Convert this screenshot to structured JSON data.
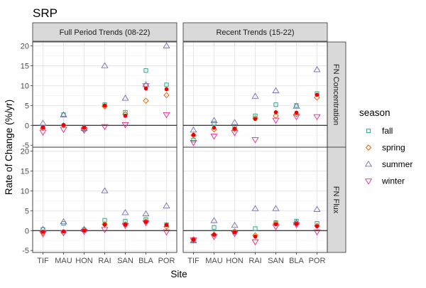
{
  "chart_data": {
    "type": "scatter",
    "title": "SRP",
    "xlabel": "Site",
    "ylabel": "Rate of Change (%/yr)",
    "sites": [
      "TIF",
      "MAU",
      "HON",
      "RAI",
      "SAN",
      "BLA",
      "POR"
    ],
    "yticks": [
      -5,
      0,
      5,
      10,
      15,
      20
    ],
    "ylim": [
      -5.5,
      21
    ],
    "grid": true,
    "legend": {
      "title": "season",
      "position": "right",
      "entries": [
        {
          "key": "fall",
          "label": "fall",
          "color": "#1b9e77",
          "shape": "square"
        },
        {
          "key": "spring",
          "label": "spring",
          "color": "#d95f02",
          "shape": "diamond"
        },
        {
          "key": "summer",
          "label": "summer",
          "color": "#7570b3",
          "shape": "triangle-up"
        },
        {
          "key": "winter",
          "label": "winter",
          "color": "#e7298a",
          "shape": "triangle-down"
        }
      ]
    },
    "overall_color": "#ee0000",
    "column_labels": [
      "Full Period Trends (08-22)",
      "Recent Trends (15-22)"
    ],
    "row_labels": [
      "FN Concentration",
      "FN Flux"
    ],
    "panels": [
      {
        "column": "Full Period Trends (08-22)",
        "row": "FN Concentration",
        "series": {
          "fall": [
            -0.5,
            2.7,
            -1.0,
            5.2,
            3.3,
            13.8,
            10.2
          ],
          "spring": [
            -0.7,
            0.0,
            -0.5,
            4.8,
            2.8,
            6.2,
            7.6
          ],
          "summer": [
            0.5,
            2.6,
            -0.8,
            15.0,
            6.8,
            10.2,
            20.0
          ],
          "winter": [
            -1.7,
            -1.0,
            -1.2,
            -0.3,
            0.2,
            10.0,
            2.7
          ],
          "overall": [
            -0.5,
            0.1,
            -0.6,
            5.0,
            2.4,
            9.3,
            9.1
          ]
        }
      },
      {
        "column": "Recent Trends (15-22)",
        "row": "FN Concentration",
        "series": {
          "fall": [
            -3.7,
            0.5,
            -0.3,
            2.4,
            5.2,
            5.0,
            8.0
          ],
          "spring": [
            -2.5,
            -1.0,
            -1.0,
            1.8,
            2.4,
            2.8,
            7.0
          ],
          "summer": [
            -1.2,
            1.2,
            0.7,
            7.3,
            8.7,
            4.8,
            14.0
          ],
          "winter": [
            -4.3,
            -2.7,
            -1.8,
            -3.6,
            1.3,
            2.2,
            2.2
          ],
          "overall": [
            -2.4,
            -0.6,
            -0.8,
            1.6,
            3.3,
            3.2,
            7.7
          ]
        }
      },
      {
        "column": "Full Period Trends (08-22)",
        "row": "FN Flux",
        "series": {
          "fall": [
            0.3,
            1.8,
            0.2,
            2.6,
            2.4,
            2.8,
            1.5
          ],
          "spring": [
            -0.5,
            -0.5,
            0.2,
            1.6,
            1.6,
            2.3,
            1.0
          ],
          "summer": [
            0.3,
            2.2,
            0.3,
            10.0,
            4.5,
            4.2,
            6.2
          ],
          "winter": [
            -0.8,
            -0.5,
            -0.2,
            0.3,
            1.3,
            2.0,
            -0.3
          ],
          "overall": [
            -0.3,
            -0.2,
            0.0,
            1.5,
            1.5,
            2.2,
            1.4
          ]
        }
      },
      {
        "column": "Recent Trends (15-22)",
        "row": "FN Flux",
        "series": {
          "fall": [
            -2.5,
            0.8,
            -0.4,
            0.5,
            2.0,
            2.4,
            1.8
          ],
          "spring": [
            -2.2,
            -1.0,
            -0.2,
            -1.2,
            1.8,
            1.8,
            1.2
          ],
          "summer": [
            -2.6,
            2.5,
            1.3,
            5.5,
            5.5,
            2.0,
            5.3
          ],
          "winter": [
            -2.3,
            -1.5,
            -0.7,
            -2.8,
            1.0,
            1.5,
            -0.3
          ],
          "overall": [
            -2.3,
            -1.0,
            -0.4,
            -1.5,
            1.6,
            1.7,
            1.1
          ]
        }
      }
    ]
  }
}
